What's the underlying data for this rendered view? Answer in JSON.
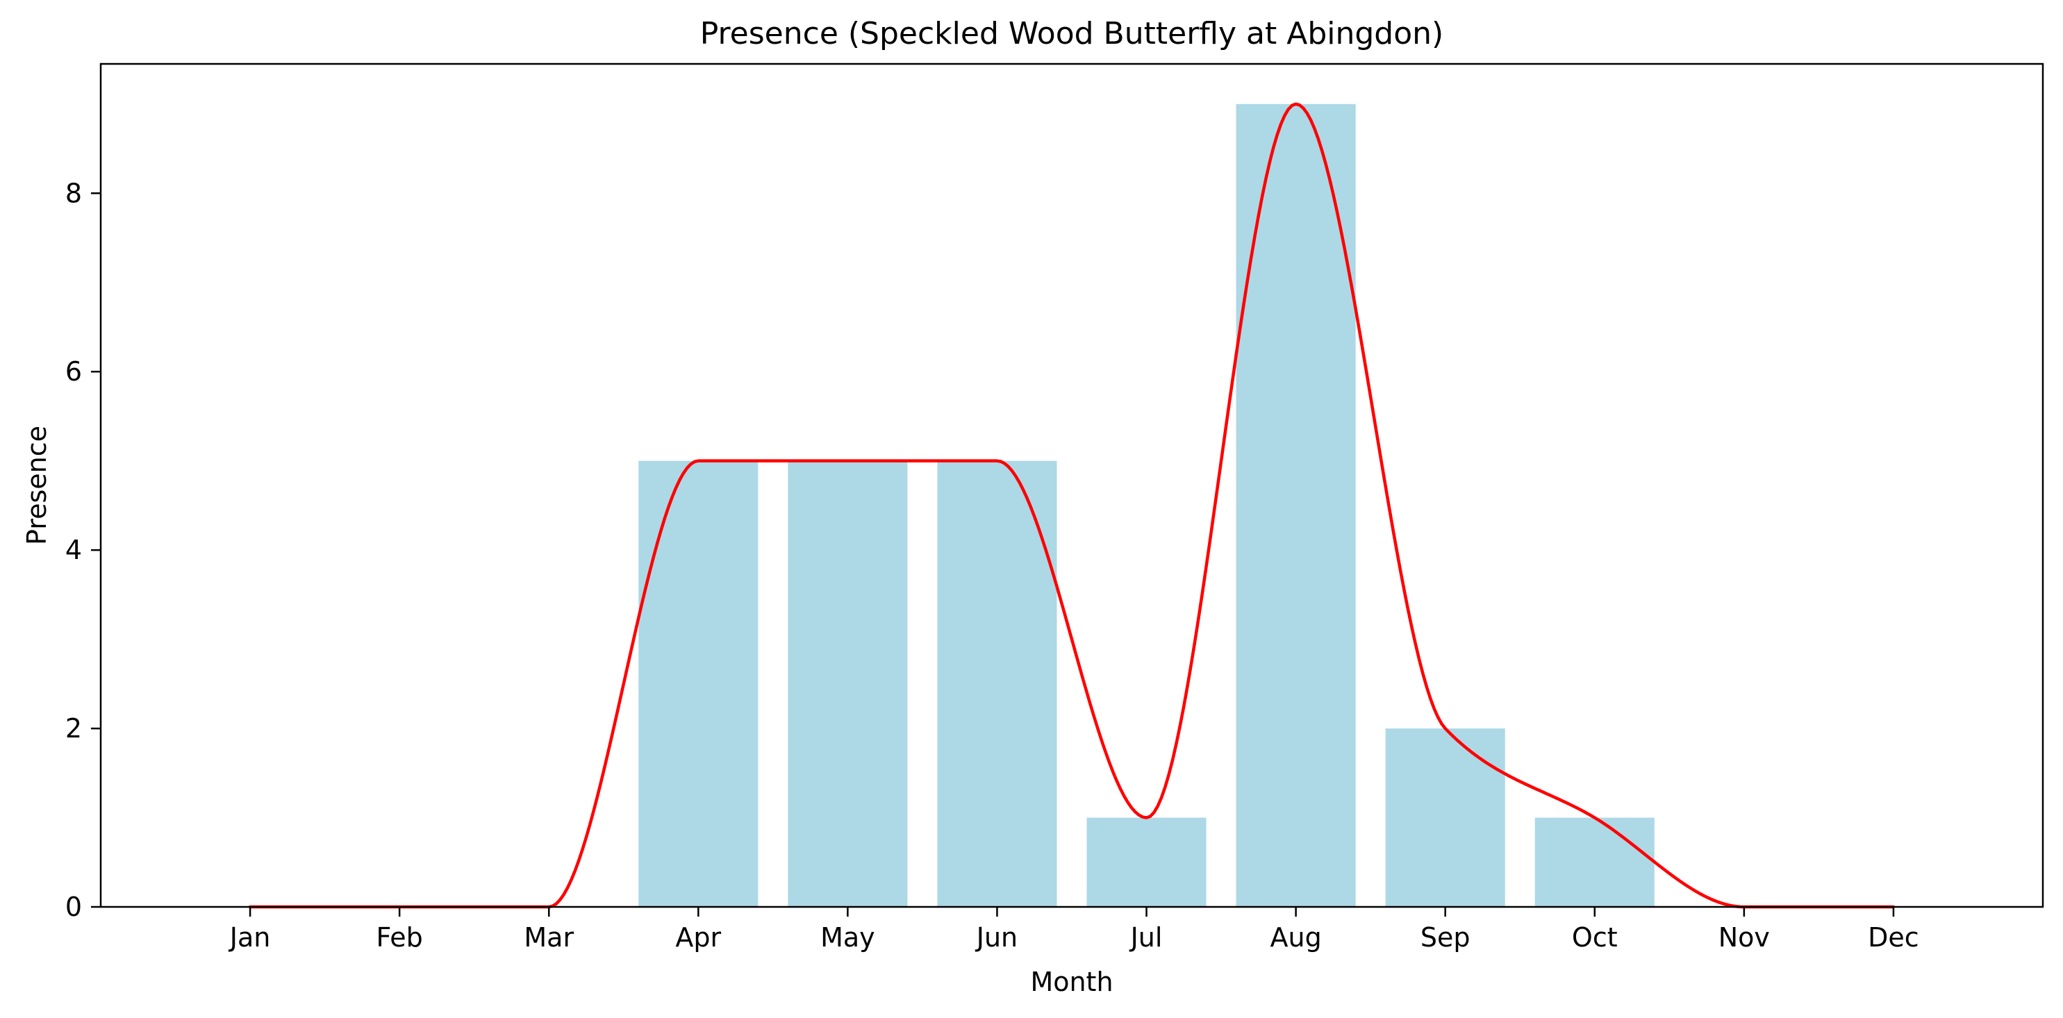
{
  "chart_data": {
    "type": "bar",
    "title": "Presence (Speckled Wood Butterfly at Abingdon)",
    "xlabel": "Month",
    "ylabel": "Presence",
    "categories": [
      "Jan",
      "Feb",
      "Mar",
      "Apr",
      "May",
      "Jun",
      "Jul",
      "Aug",
      "Sep",
      "Oct",
      "Nov",
      "Dec"
    ],
    "values": [
      0,
      0,
      0,
      5,
      5,
      5,
      1,
      9,
      2,
      1,
      0,
      0
    ],
    "ylim": [
      0,
      9.45
    ],
    "yticks": [
      0,
      2,
      4,
      6,
      8
    ],
    "grid": false,
    "legend": "none",
    "bar_color": "#add8e6",
    "line_color": "#ff0000",
    "overlay": "smoothed line through monthly values"
  }
}
